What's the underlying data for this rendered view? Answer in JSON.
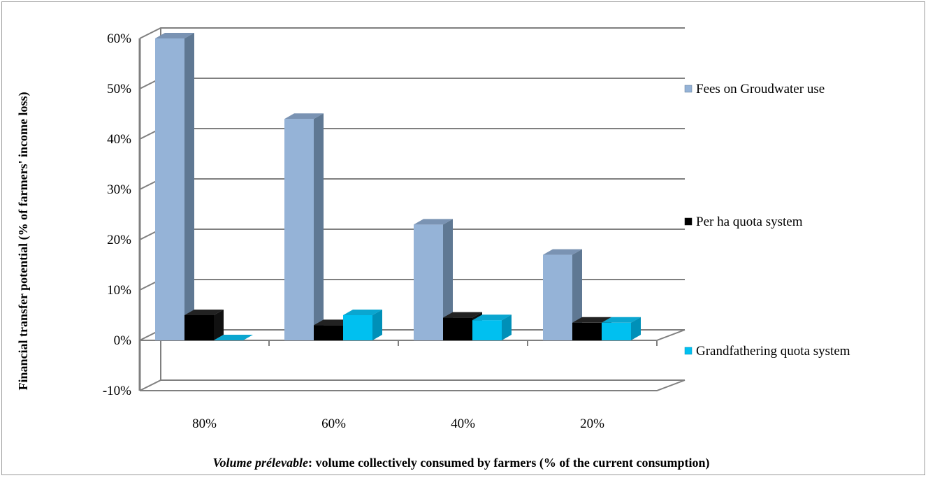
{
  "chart_data": {
    "type": "bar",
    "subtype": "3d-clustered-column",
    "title": "",
    "xlabel_italic": "Volume prélevable",
    "xlabel_rest": ": volume collectively consumed by farmers (% of the current  consumption)",
    "ylabel": "Financial transfer potential (%  of farmers' income loss)",
    "categories": [
      "80%",
      "60%",
      "40%",
      "20%"
    ],
    "ylim": [
      -0.1,
      0.6
    ],
    "yticks": [
      "-10%",
      "0%",
      "10%",
      "20%",
      "30%",
      "40%",
      "50%",
      "60%"
    ],
    "ytick_values": [
      -0.1,
      0.0,
      0.1,
      0.2,
      0.3,
      0.4,
      0.5,
      0.6
    ],
    "grid": true,
    "legend_position": "right",
    "series": [
      {
        "name": "Fees on Groudwater use",
        "values": [
          0.6,
          0.44,
          0.23,
          0.17
        ],
        "color": "#95b3d7",
        "top": "#7a93b3",
        "side": "#5f7893"
      },
      {
        "name": "Per ha quota system",
        "values": [
          0.05,
          0.03,
          0.045,
          0.035
        ],
        "color": "#000000",
        "top": "#222222",
        "side": "#111111"
      },
      {
        "name": "Grandfathering quota system",
        "values": [
          0.0,
          0.05,
          0.04,
          0.035
        ],
        "color": "#00c0f0",
        "top": "#0aa6d0",
        "side": "#0090b8"
      }
    ]
  }
}
